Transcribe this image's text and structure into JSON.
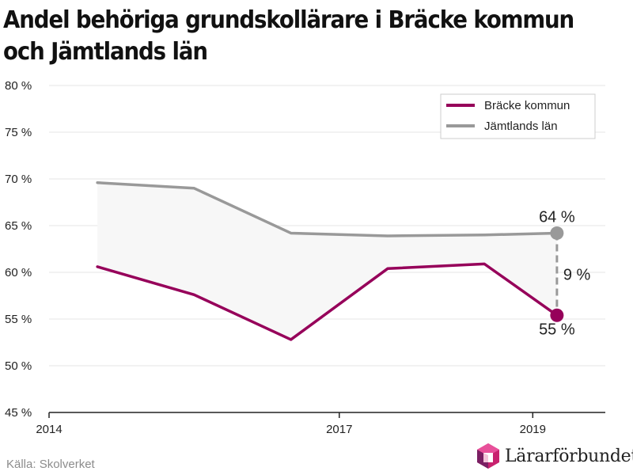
{
  "chart_data": {
    "type": "line",
    "title": "Andel behöriga grundskollärare i Bräcke kommun och Jämtlands län",
    "xlabel": "",
    "ylabel": "",
    "x": [
      2014.5,
      2015.5,
      2016.5,
      2017.5,
      2018.5,
      2019.25
    ],
    "xlim": [
      2014,
      2019.75
    ],
    "xticks": [
      2014,
      2017,
      2019
    ],
    "ylim": [
      45,
      80
    ],
    "yticks": [
      45,
      50,
      55,
      60,
      65,
      70,
      75,
      80
    ],
    "y_unit": " %",
    "grid": true,
    "legend": "top-right",
    "series": [
      {
        "name": "Bräcke kommun",
        "color": "#96005a",
        "values": [
          60.6,
          57.6,
          52.8,
          60.4,
          60.9,
          55.4
        ]
      },
      {
        "name": "Jämtlands län",
        "color": "#999999",
        "values": [
          69.6,
          69.0,
          64.2,
          63.9,
          64.0,
          64.2
        ]
      }
    ],
    "band_fill": "#f7f7f7",
    "annotations": {
      "top_label": "64 %",
      "bottom_label": "55 %",
      "gap_label": "9 %"
    }
  },
  "footer": {
    "source": "Källa: Skolverket",
    "logo_text": "Lärarförbundet",
    "logo_icon": "lararforbundet-logo-icon"
  }
}
